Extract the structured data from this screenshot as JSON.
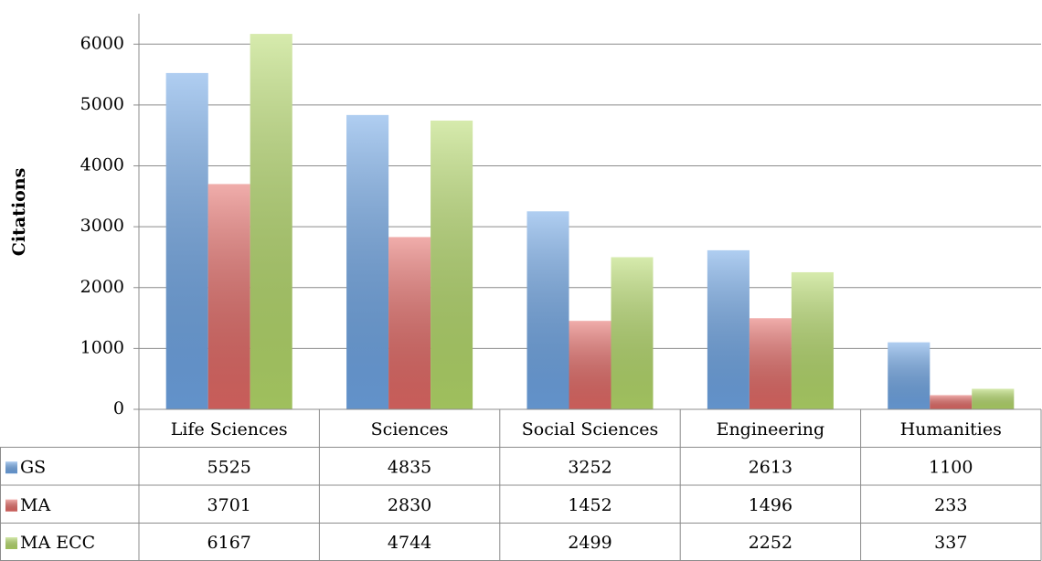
{
  "chart_data": {
    "type": "bar",
    "y_label": "Citations",
    "categories": [
      "Life Sciences",
      "Sciences",
      "Social Sciences",
      "Engineering",
      "Humanities"
    ],
    "series": [
      {
        "name": "GS",
        "color": "#6fa6e6",
        "values": [
          5525,
          4835,
          3252,
          2613,
          1100
        ]
      },
      {
        "name": "MA",
        "color": "#e46a66",
        "values": [
          3701,
          2830,
          1452,
          1496,
          233
        ]
      },
      {
        "name": "MA ECC",
        "color": "#b5da6a",
        "values": [
          6167,
          4744,
          2499,
          2252,
          337
        ]
      }
    ],
    "ylim": [
      0,
      6500
    ],
    "yticks": [
      0,
      1000,
      2000,
      3000,
      4000,
      5000,
      6000
    ],
    "grid": true
  }
}
